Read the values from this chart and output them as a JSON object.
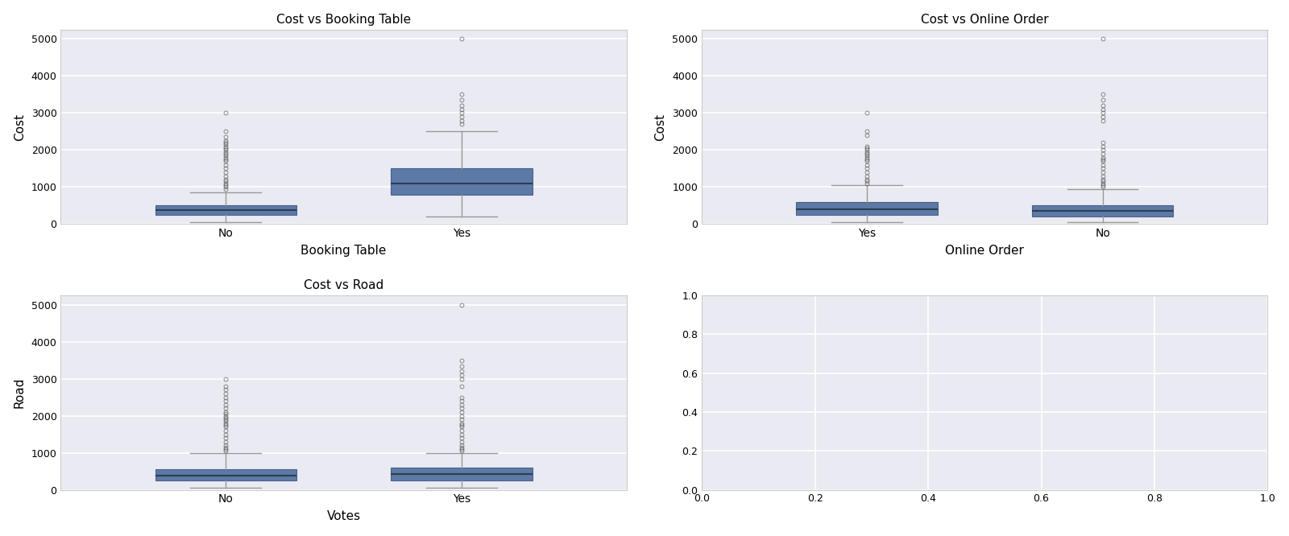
{
  "plots": [
    {
      "title": "Cost vs Booking Table",
      "xlabel": "Booking Table",
      "ylabel": "Cost",
      "categories": [
        "No",
        "Yes"
      ],
      "boxes": [
        {
          "q1": 250,
          "median": 380,
          "q3": 500,
          "whislo": 50,
          "whishi": 850,
          "fliers_high": [
            950,
            1000,
            1050,
            1100,
            1150,
            1200,
            1300,
            1400,
            1500,
            1600,
            1700,
            1750,
            1800,
            1850,
            1900,
            1950,
            2000,
            2050,
            2100,
            2150,
            2200,
            2250,
            2350,
            2500,
            3000
          ]
        },
        {
          "q1": 800,
          "median": 1100,
          "q3": 1500,
          "whislo": 200,
          "whishi": 2500,
          "fliers_high": [
            2700,
            2800,
            2900,
            3000,
            3100,
            3200,
            3350,
            3500,
            5000
          ]
        }
      ],
      "ylim": [
        0,
        5250
      ],
      "yticks": [
        0,
        1000,
        2000,
        3000,
        4000,
        5000
      ]
    },
    {
      "title": "Cost vs Online Order",
      "xlabel": "Online Order",
      "ylabel": "Cost",
      "categories": [
        "Yes",
        "No"
      ],
      "boxes": [
        {
          "q1": 250,
          "median": 400,
          "q3": 600,
          "whislo": 50,
          "whishi": 1050,
          "fliers_high": [
            1100,
            1150,
            1200,
            1300,
            1400,
            1500,
            1600,
            1700,
            1750,
            1800,
            1850,
            1900,
            1950,
            2000,
            2050,
            2100,
            2400,
            2500,
            3000
          ]
        },
        {
          "q1": 200,
          "median": 350,
          "q3": 500,
          "whislo": 50,
          "whishi": 950,
          "fliers_high": [
            1000,
            1050,
            1100,
            1150,
            1200,
            1300,
            1400,
            1500,
            1600,
            1700,
            1750,
            1800,
            1900,
            2000,
            2100,
            2200,
            2800,
            2900,
            3000,
            3100,
            3200,
            3350,
            3500,
            5000
          ]
        }
      ],
      "ylim": [
        0,
        5250
      ],
      "yticks": [
        0,
        1000,
        2000,
        3000,
        4000,
        5000
      ]
    },
    {
      "title": "Cost vs Road",
      "xlabel": "Votes",
      "ylabel": "Road",
      "categories": [
        "No",
        "Yes"
      ],
      "boxes": [
        {
          "q1": 250,
          "median": 380,
          "q3": 550,
          "whislo": 50,
          "whishi": 1000,
          "fliers_high": [
            1050,
            1100,
            1150,
            1200,
            1300,
            1400,
            1500,
            1600,
            1700,
            1750,
            1800,
            1850,
            1900,
            1950,
            2000,
            2050,
            2100,
            2200,
            2300,
            2400,
            2500,
            2600,
            2700,
            2800,
            3000
          ]
        },
        {
          "q1": 250,
          "median": 420,
          "q3": 600,
          "whislo": 50,
          "whishi": 1000,
          "fliers_high": [
            1050,
            1100,
            1150,
            1200,
            1300,
            1400,
            1500,
            1600,
            1700,
            1750,
            1800,
            1900,
            2000,
            2100,
            2200,
            2300,
            2400,
            2500,
            2800,
            3000,
            3100,
            3200,
            3350,
            3500,
            5000
          ]
        }
      ],
      "ylim": [
        0,
        5250
      ],
      "yticks": [
        0,
        1000,
        2000,
        3000,
        4000,
        5000
      ]
    },
    {
      "title": "",
      "xlabel": "",
      "ylabel": "",
      "ylim": [
        0.0,
        1.0
      ],
      "xlim": [
        0.0,
        1.0
      ],
      "yticks": [
        0.0,
        0.2,
        0.4,
        0.6,
        0.8,
        1.0
      ],
      "xticks": [
        0.0,
        0.2,
        0.4,
        0.6,
        0.8,
        1.0
      ]
    }
  ],
  "box_color": "#4e6d9e",
  "box_edge_color": "#3d5a8a",
  "median_color": "#2c3e50",
  "whisker_color": "#999999",
  "flier_color": "#555555",
  "bg_color": "#eaeaf2",
  "grid_color": "#ffffff",
  "figure_bg": "#ffffff"
}
